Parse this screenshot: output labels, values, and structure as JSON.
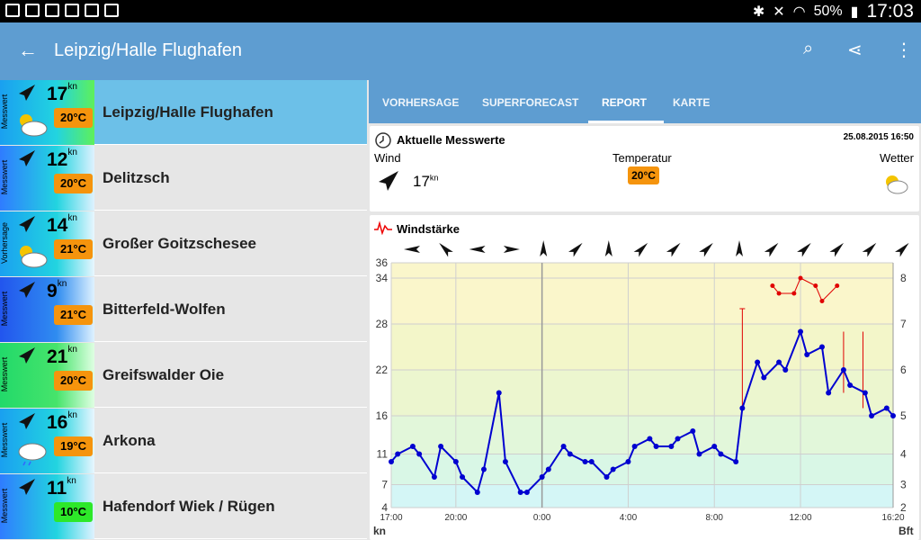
{
  "status": {
    "battery": "50%",
    "time": "17:03"
  },
  "appbar": {
    "title": "Leipzig/Halle Flughafen",
    "back_icon": "arrow-left-icon",
    "actions": [
      "search-icon",
      "share-icon",
      "more-vert-icon"
    ]
  },
  "stations": [
    {
      "label": "Messwert",
      "knots": "17",
      "kn": "kn",
      "temp": "20°C",
      "temp_color": "#f5940d",
      "name": "Leipzig/Halle Flughafen",
      "weather": "sun-cloud",
      "grad": [
        "#1aa0f0",
        "#22d4e0",
        "#5ef05a"
      ],
      "selected": true
    },
    {
      "label": "Messwert",
      "knots": "12",
      "kn": "kn",
      "temp": "20°C",
      "temp_color": "#f5940d",
      "name": "Delitzsch",
      "weather": "none",
      "grad": [
        "#2f7cff",
        "#22d4e0",
        "#dff2ff"
      ],
      "selected": false
    },
    {
      "label": "Vorhersage",
      "knots": "14",
      "kn": "kn",
      "temp": "21°C",
      "temp_color": "#f5940d",
      "name": "Großer Goitzschesee",
      "weather": "sun-cloud",
      "grad": [
        "#1aa0f0",
        "#22d4e0",
        "#e8f6ff"
      ],
      "selected": false
    },
    {
      "label": "Messwert",
      "knots": "9",
      "kn": "kn",
      "temp": "21°C",
      "temp_color": "#f5940d",
      "name": "Bitterfeld-Wolfen",
      "weather": "none",
      "grad": [
        "#2255ee",
        "#2f8cf0",
        "#dff2ff"
      ],
      "selected": false
    },
    {
      "label": "Messwert",
      "knots": "21",
      "kn": "kn",
      "temp": "20°C",
      "temp_color": "#f5940d",
      "name": "Greifswalder Oie",
      "weather": "none",
      "grad": [
        "#22d96a",
        "#46e46b",
        "#dfffe2"
      ],
      "selected": false
    },
    {
      "label": "Messwert",
      "knots": "16",
      "kn": "kn",
      "temp": "19°C",
      "temp_color": "#f5940d",
      "name": "Arkona",
      "weather": "cloud-rain",
      "grad": [
        "#1aa0f0",
        "#22d4e0",
        "#e8f6ff"
      ],
      "selected": false
    },
    {
      "label": "Messwert",
      "knots": "11",
      "kn": "kn",
      "temp": "10°C",
      "temp_color": "#2de829",
      "name": "Hafendorf Wiek / Rügen",
      "weather": "none",
      "grad": [
        "#2f7cff",
        "#22d4e0",
        "#dff2ff"
      ],
      "selected": false
    }
  ],
  "tabs": [
    "VORHERSAGE",
    "SUPERFORECAST",
    "REPORT",
    "KARTE"
  ],
  "active_tab": 2,
  "current": {
    "title": "Aktuelle Messwerte",
    "datetime": "25.08.2015 16:50",
    "wind_label": "Wind",
    "wind_value": "17",
    "wind_unit": "kn",
    "temp_label": "Temperatur",
    "temp_value": "20°C",
    "weather_label": "Wetter"
  },
  "chart_data": {
    "type": "line",
    "title": "Windstärke",
    "xlabel": "kn",
    "ylabel_right": "Bft",
    "x_ticks": [
      "17:00",
      "20:00",
      "0:00",
      "4:00",
      "8:00",
      "12:00",
      "16:20"
    ],
    "y_ticks_left": [
      4,
      7,
      11,
      16,
      22,
      28,
      34,
      36
    ],
    "y_ticks_right": [
      2,
      3,
      4,
      5,
      6,
      7,
      8
    ],
    "ylim": [
      4,
      36
    ],
    "x": [
      0,
      0.5,
      1,
      1.5,
      2,
      2.5,
      3,
      3.5,
      4,
      4.5,
      5,
      5.5,
      6,
      6.5,
      7,
      7.5,
      8,
      8.5,
      9,
      9.5,
      10,
      10.5,
      11,
      11.5,
      12,
      12.5,
      13,
      13.5,
      14,
      14.5,
      15,
      15.5,
      16,
      16.5,
      17,
      17.5,
      18,
      18.5,
      19,
      19.5,
      20,
      20.5,
      21,
      21.5,
      22,
      22.5,
      23,
      23.5,
      24,
      24.5,
      25,
      25.5,
      26,
      26.5,
      27,
      27.5,
      28,
      28.5,
      29,
      29.5,
      30,
      30.5,
      31,
      31.5,
      32,
      32.5,
      33,
      33.5,
      34,
      34.5,
      35,
      35.5,
      36,
      36.5,
      37,
      37.5,
      38,
      38.5,
      39,
      39.5,
      40,
      40.5,
      41,
      41.5,
      42,
      42.5,
      43,
      43.5,
      44,
      44.5,
      45,
      45.5,
      46,
      46.5,
      47,
      47.5
    ],
    "series": [
      {
        "name": "wind",
        "color": "#0000d0",
        "points": [
          [
            0,
            10
          ],
          [
            0.3,
            11
          ],
          [
            1,
            12
          ],
          [
            1.3,
            11
          ],
          [
            2,
            8
          ],
          [
            2.3,
            12
          ],
          [
            3,
            10
          ],
          [
            3.3,
            8
          ],
          [
            4,
            6
          ],
          [
            4.3,
            9
          ],
          [
            5,
            19
          ],
          [
            5.3,
            10
          ],
          [
            6,
            6
          ],
          [
            6.3,
            6
          ],
          [
            7,
            8
          ],
          [
            7.3,
            9
          ],
          [
            8,
            12
          ],
          [
            8.3,
            11
          ],
          [
            9,
            10
          ],
          [
            9.3,
            10
          ],
          [
            10,
            8
          ],
          [
            10.3,
            9
          ],
          [
            11,
            10
          ],
          [
            11.3,
            12
          ],
          [
            12,
            13
          ],
          [
            12.3,
            12
          ],
          [
            13,
            12
          ],
          [
            13.3,
            13
          ],
          [
            14,
            14
          ],
          [
            14.3,
            11
          ],
          [
            15,
            12
          ],
          [
            15.3,
            11
          ],
          [
            16,
            10
          ],
          [
            16.3,
            17
          ],
          [
            17,
            23
          ],
          [
            17.3,
            21
          ],
          [
            18,
            23
          ],
          [
            18.3,
            22
          ],
          [
            19,
            27
          ],
          [
            19.3,
            24
          ],
          [
            20,
            25
          ],
          [
            20.3,
            19
          ],
          [
            21,
            22
          ],
          [
            21.3,
            20
          ],
          [
            22,
            19
          ],
          [
            22.3,
            16
          ],
          [
            23,
            17
          ],
          [
            23.3,
            16
          ]
        ]
      },
      {
        "name": "gusts",
        "color": "#e00000",
        "points": [
          [
            17.7,
            33
          ],
          [
            18,
            32
          ],
          [
            18.7,
            32
          ],
          [
            19,
            34
          ],
          [
            19.7,
            33
          ],
          [
            20,
            31
          ],
          [
            20.7,
            33
          ]
        ]
      }
    ],
    "gust_bars": [
      [
        16.3,
        17,
        30
      ],
      [
        21,
        19,
        27
      ],
      [
        21.9,
        17,
        27
      ]
    ],
    "direction_arrows": [
      "w",
      "nw",
      "w",
      "e",
      "n",
      "ne",
      "n",
      "ne",
      "ne",
      "ne",
      "n",
      "ne",
      "ne",
      "ne",
      "ne",
      "ne"
    ]
  }
}
